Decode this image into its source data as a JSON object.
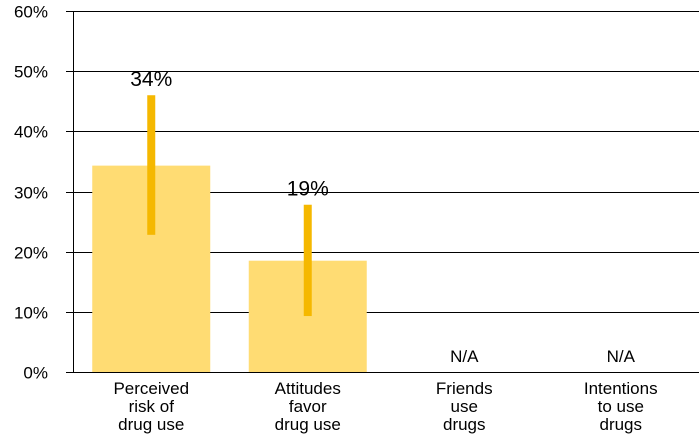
{
  "chart_data": {
    "type": "bar",
    "title": "",
    "xlabel": "",
    "ylabel": "",
    "ylim": [
      0,
      60
    ],
    "y_ticks": [
      "0%",
      "10%",
      "20%",
      "30%",
      "40%",
      "50%",
      "60%"
    ],
    "y_tick_values": [
      0,
      10,
      20,
      30,
      40,
      50,
      60
    ],
    "grid": true,
    "legend": "none",
    "categories": [
      [
        "Perceived",
        "risk of",
        "drug use"
      ],
      [
        "Attitudes",
        "favor",
        "drug use"
      ],
      [
        "Friends",
        "use",
        "drugs"
      ],
      [
        "Intentions",
        "to use",
        "drugs"
      ]
    ],
    "values": [
      34.3,
      18.5,
      null,
      null
    ],
    "error_low": [
      22.8,
      9.3,
      null,
      null
    ],
    "error_high": [
      46.0,
      27.8,
      null,
      null
    ],
    "data_labels": [
      "34%",
      "19%",
      "N/A",
      "N/A"
    ],
    "colors": {
      "bar": "#FFDC73",
      "error_bar": "#F5B800",
      "grid": "#000000"
    }
  }
}
